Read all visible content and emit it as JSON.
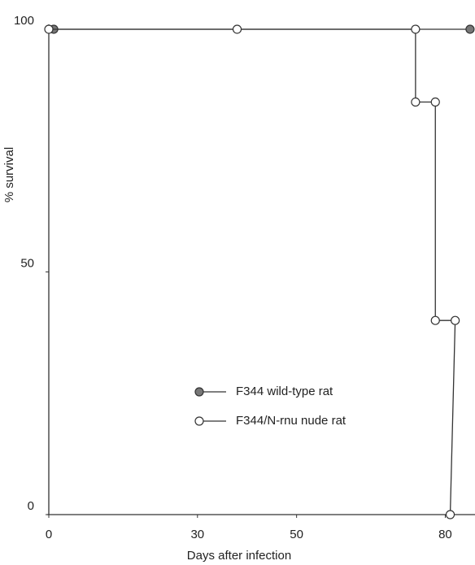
{
  "chart_data": {
    "type": "step",
    "x_label": "Days after infection",
    "y_label": "% survival",
    "xlim": [
      0,
      86
    ],
    "ylim": [
      0,
      101
    ],
    "xticks": [
      0,
      30,
      50,
      80
    ],
    "yticks": [
      0,
      50,
      100
    ],
    "series": [
      {
        "name": "F344 wild-type rat",
        "color": "#777777",
        "marker": "filled",
        "x": [
          1,
          85
        ],
        "values": [
          100,
          100
        ]
      },
      {
        "name": "F344/N-rnu nude rat",
        "color": "#ffffff",
        "marker": "open",
        "x": [
          0,
          38,
          74,
          74,
          78,
          78,
          82,
          81
        ],
        "values": [
          100,
          100,
          100,
          85,
          85,
          40,
          40,
          0
        ]
      }
    ]
  }
}
